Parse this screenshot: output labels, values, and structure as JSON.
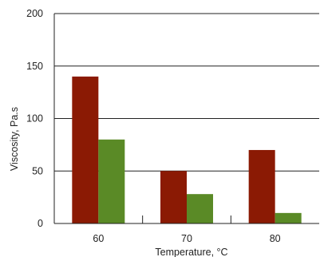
{
  "chart_data": {
    "type": "bar",
    "title": "",
    "xlabel": "Temperature, °C",
    "ylabel": "Viscosity, Pa.s",
    "categories": [
      "60",
      "70",
      "80"
    ],
    "series": [
      {
        "values": [
          140,
          50,
          70
        ],
        "color": "#8b1a04"
      },
      {
        "values": [
          80,
          28,
          10
        ],
        "color": "#5a8a26"
      }
    ],
    "ylim": [
      0,
      200
    ],
    "yticks": [
      0,
      50,
      100,
      150,
      200
    ],
    "grid": "horizontal",
    "legend": "none"
  }
}
